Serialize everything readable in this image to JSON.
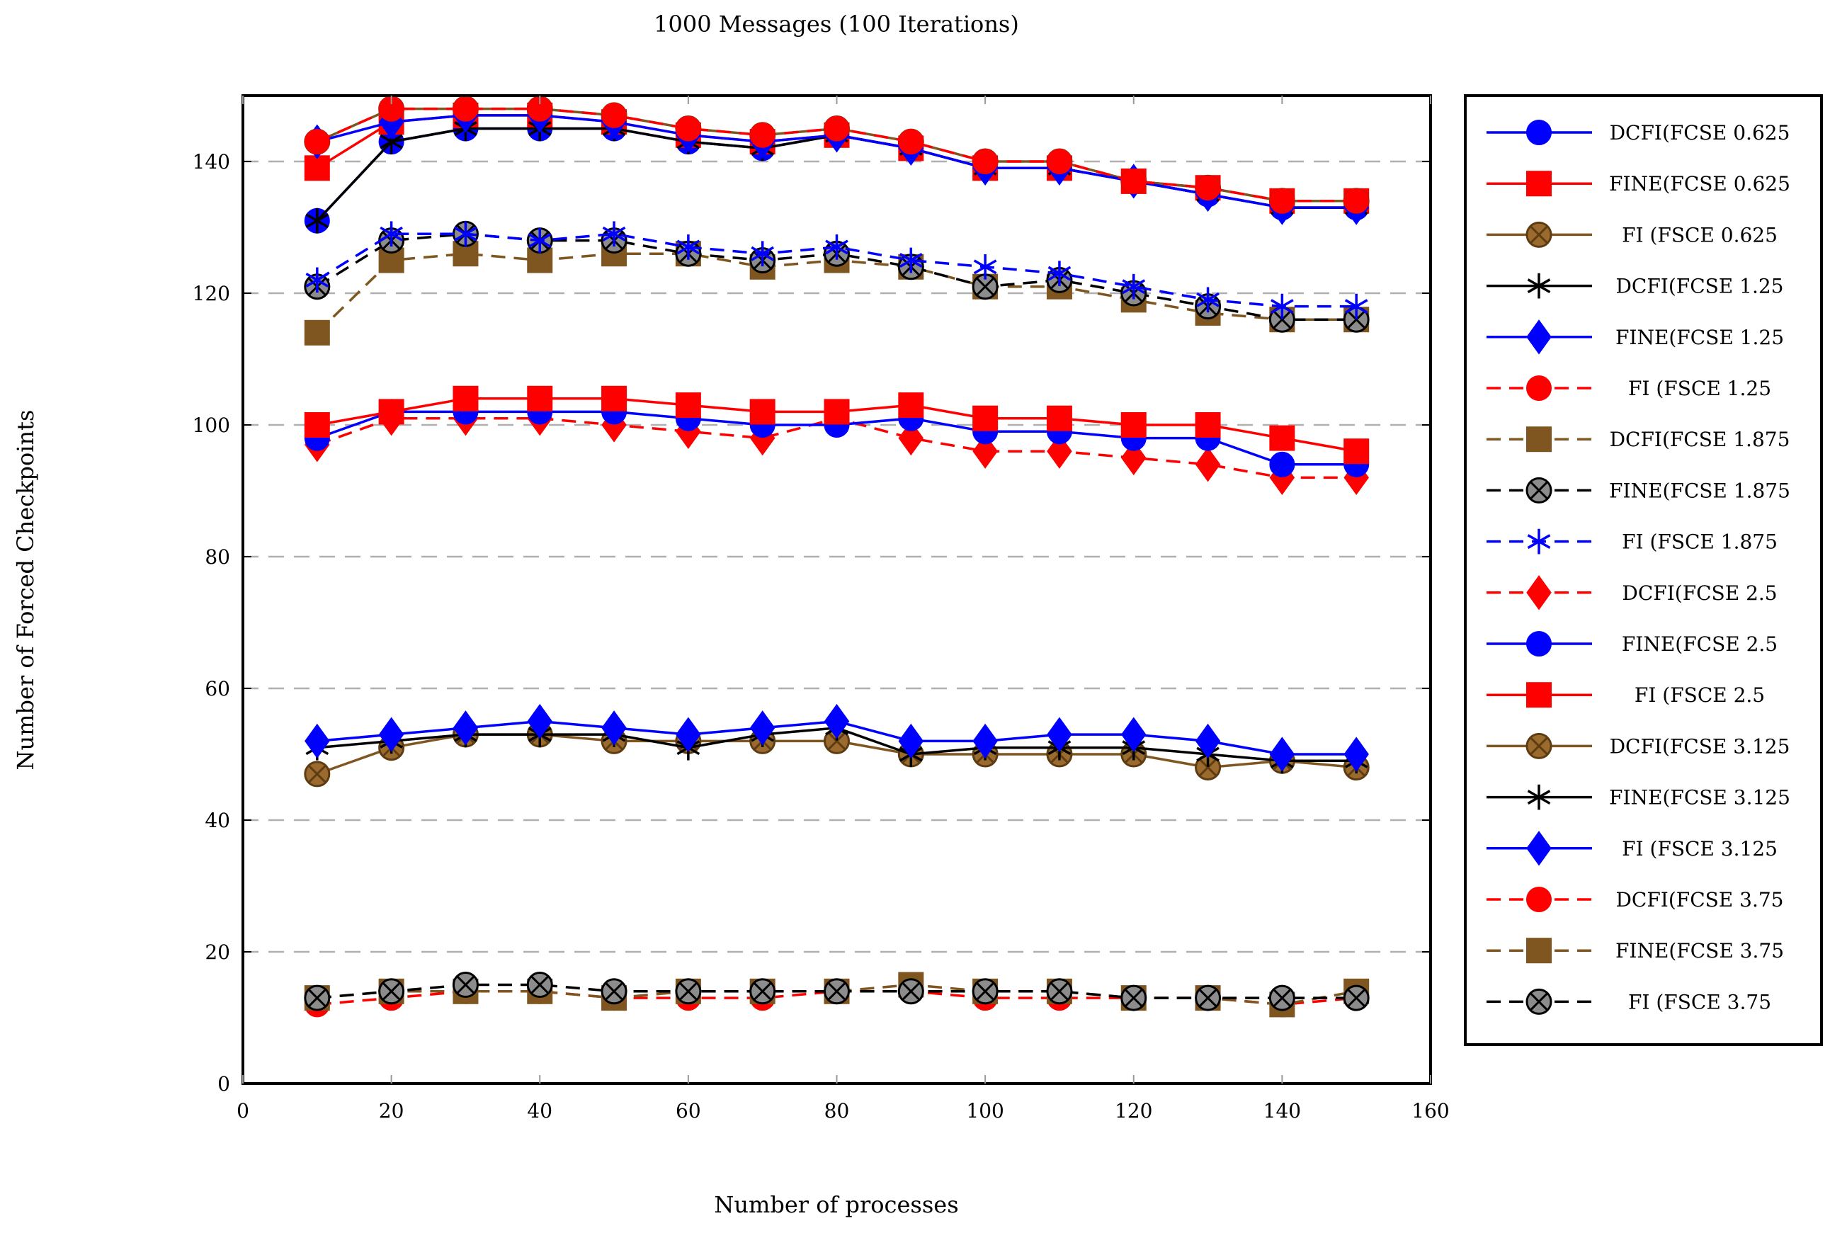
{
  "chart_data": {
    "type": "line",
    "title": "1000 Messages (100 Iterations)",
    "xlabel": "Number of processes",
    "ylabel": "Number of Forced Checkpoints",
    "xlim": [
      0,
      160
    ],
    "ylim": [
      0,
      150
    ],
    "xticks": [
      0,
      20,
      40,
      60,
      80,
      100,
      120,
      140,
      160
    ],
    "yticks": [
      0,
      20,
      40,
      60,
      80,
      100,
      120,
      140
    ],
    "grid": "horizontal dashed",
    "legend_position": "right",
    "x": [
      10,
      20,
      30,
      40,
      50,
      60,
      70,
      80,
      90,
      100,
      110,
      120,
      130,
      140,
      150
    ],
    "series": [
      {
        "name": "DCFI(FCSE 0.625",
        "color": "#0000ff",
        "dash": "solid",
        "marker": "circle",
        "values": [
          131,
          143,
          145,
          145,
          145,
          143,
          142,
          144,
          142,
          139,
          139,
          137,
          135,
          133,
          133
        ]
      },
      {
        "name": "FINE(FCSE 0.625",
        "color": "#ff0000",
        "dash": "solid",
        "marker": "square",
        "values": [
          139,
          146,
          147,
          147,
          146,
          144,
          143,
          144,
          142,
          139,
          139,
          137,
          136,
          134,
          134
        ]
      },
      {
        "name": "FI (FSCE 0.625",
        "color": "#7f5520",
        "dash": "solid",
        "marker": "otimes",
        "values": [
          143,
          148,
          148,
          148,
          147,
          145,
          144,
          145,
          143,
          140,
          140,
          137,
          136,
          134,
          134
        ]
      },
      {
        "name": "DCFI(FCSE 1.25",
        "color": "#000000",
        "dash": "solid",
        "marker": "star",
        "values": [
          131,
          143,
          145,
          145,
          145,
          143,
          142,
          144,
          142,
          139,
          139,
          137,
          135,
          133,
          133
        ]
      },
      {
        "name": "FINE(FCSE 1.25",
        "color": "#0000ff",
        "dash": "solid",
        "marker": "diamond",
        "values": [
          143,
          146,
          147,
          147,
          146,
          144,
          143,
          144,
          142,
          139,
          139,
          137,
          135,
          133,
          133
        ]
      },
      {
        "name": "FI (FSCE 1.25",
        "color": "#ff0000",
        "dash": "dashed",
        "marker": "circle",
        "values": [
          143,
          148,
          148,
          148,
          147,
          145,
          144,
          145,
          143,
          140,
          140,
          137,
          136,
          134,
          134
        ]
      },
      {
        "name": "DCFI(FCSE 1.875",
        "color": "#7f5520",
        "dash": "dashed",
        "marker": "square",
        "values": [
          114,
          125,
          126,
          125,
          126,
          126,
          124,
          125,
          124,
          121,
          121,
          119,
          117,
          116,
          116
        ]
      },
      {
        "name": "FINE(FCSE 1.875",
        "color": "#000000",
        "dash": "dashed",
        "marker": "otimes",
        "values": [
          121,
          128,
          129,
          128,
          128,
          126,
          125,
          126,
          124,
          121,
          122,
          120,
          118,
          116,
          116
        ]
      },
      {
        "name": "FI (FSCE 1.875",
        "color": "#0000ff",
        "dash": "dashed",
        "marker": "star",
        "values": [
          122,
          129,
          129,
          128,
          129,
          127,
          126,
          127,
          125,
          124,
          123,
          121,
          119,
          118,
          118
        ]
      },
      {
        "name": "DCFI(FCSE 2.5",
        "color": "#ff0000",
        "dash": "dashed",
        "marker": "diamond",
        "values": [
          97,
          101,
          101,
          101,
          100,
          99,
          98,
          101,
          98,
          96,
          96,
          95,
          94,
          92,
          92
        ]
      },
      {
        "name": "FINE(FCSE 2.5",
        "color": "#0000ff",
        "dash": "solid",
        "marker": "circle",
        "values": [
          98,
          102,
          102,
          102,
          102,
          101,
          100,
          100,
          101,
          99,
          99,
          98,
          98,
          94,
          94
        ]
      },
      {
        "name": "FI (FSCE 2.5",
        "color": "#ff0000",
        "dash": "solid",
        "marker": "square",
        "values": [
          100,
          102,
          104,
          104,
          104,
          103,
          102,
          102,
          103,
          101,
          101,
          100,
          100,
          98,
          96
        ]
      },
      {
        "name": "DCFI(FCSE 3.125",
        "color": "#7f5520",
        "dash": "solid",
        "marker": "otimes",
        "values": [
          47,
          51,
          53,
          53,
          52,
          52,
          52,
          52,
          50,
          50,
          50,
          50,
          48,
          49,
          48
        ]
      },
      {
        "name": "FINE(FCSE 3.125",
        "color": "#000000",
        "dash": "solid",
        "marker": "star",
        "values": [
          51,
          52,
          53,
          53,
          53,
          51,
          53,
          54,
          50,
          51,
          51,
          51,
          50,
          49,
          49
        ]
      },
      {
        "name": "FI (FSCE 3.125",
        "color": "#0000ff",
        "dash": "solid",
        "marker": "diamond",
        "values": [
          52,
          53,
          54,
          55,
          54,
          53,
          54,
          55,
          52,
          52,
          53,
          53,
          52,
          50,
          50
        ]
      },
      {
        "name": "DCFI(FCSE 3.75",
        "color": "#ff0000",
        "dash": "dashed",
        "marker": "circle",
        "values": [
          12,
          13,
          14,
          14,
          13,
          13,
          13,
          14,
          14,
          13,
          13,
          13,
          13,
          12,
          13
        ]
      },
      {
        "name": "FINE(FCSE 3.75",
        "color": "#7f5520",
        "dash": "dashed",
        "marker": "square",
        "values": [
          13,
          14,
          14,
          14,
          13,
          14,
          14,
          14,
          15,
          14,
          14,
          13,
          13,
          12,
          14
        ]
      },
      {
        "name": "FI (FSCE 3.75",
        "color": "#000000",
        "dash": "dashed",
        "marker": "otimes",
        "values": [
          13,
          14,
          15,
          15,
          14,
          14,
          14,
          14,
          14,
          14,
          14,
          13,
          13,
          13,
          13
        ]
      }
    ]
  }
}
